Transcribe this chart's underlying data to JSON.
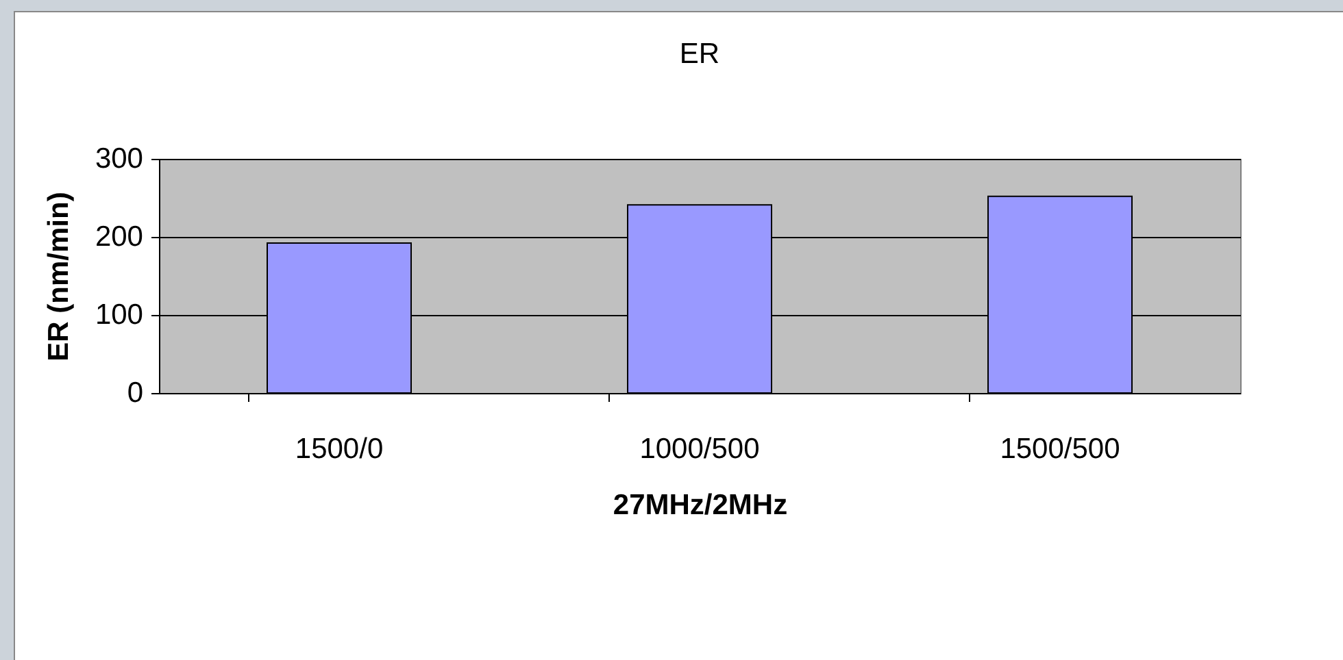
{
  "chart_data": {
    "type": "bar",
    "title": "ER",
    "xlabel": "27MHz/2MHz",
    "ylabel": "ER (nm/min)",
    "categories": [
      "1500/0",
      "1000/500",
      "1500/500"
    ],
    "values": [
      192,
      241,
      252
    ],
    "color": "#9999ff",
    "ylim": [
      0,
      300
    ],
    "yticks": [
      0,
      100,
      200,
      300
    ],
    "grid": "y"
  }
}
